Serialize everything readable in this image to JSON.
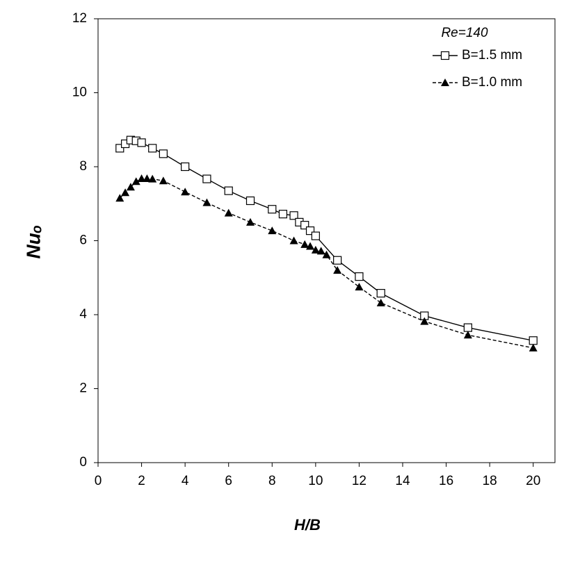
{
  "chart_data": {
    "type": "line",
    "x_label": "H/B",
    "y_label": "Nuₒ",
    "annotation": "Re=140",
    "xlim": [
      0,
      21
    ],
    "xticks": [
      0,
      2,
      4,
      6,
      8,
      10,
      12,
      14,
      16,
      18,
      20
    ],
    "ylim": [
      0,
      12
    ],
    "yticks": [
      0,
      2,
      4,
      6,
      8,
      10,
      12
    ],
    "legend": "top-right",
    "grid": false,
    "series": [
      {
        "name": "B=1.5 mm",
        "color": "#000000",
        "marker": "square-open",
        "dash": false,
        "x": [
          1,
          1.25,
          1.5,
          1.75,
          2,
          2.5,
          3,
          4,
          5,
          6,
          7,
          8,
          8.5,
          9,
          9.25,
          9.5,
          9.75,
          10,
          11,
          12,
          13,
          15,
          17,
          20
        ],
        "values": [
          8.5,
          8.62,
          8.72,
          8.7,
          8.65,
          8.5,
          8.35,
          8.0,
          7.67,
          7.35,
          7.08,
          6.85,
          6.72,
          6.68,
          6.5,
          6.42,
          6.27,
          6.13,
          5.47,
          5.03,
          4.58,
          3.97,
          3.65,
          3.3
        ]
      },
      {
        "name": "B=1.0 mm",
        "color": "#000000",
        "marker": "triangle-filled",
        "dash": true,
        "x": [
          1,
          1.25,
          1.5,
          1.75,
          2,
          2.25,
          2.5,
          3,
          4,
          5,
          6,
          7,
          8,
          9,
          9.5,
          9.75,
          10,
          10.25,
          10.5,
          11,
          12,
          13,
          15,
          17,
          20
        ],
        "values": [
          7.15,
          7.3,
          7.45,
          7.6,
          7.68,
          7.68,
          7.67,
          7.62,
          7.32,
          7.03,
          6.75,
          6.5,
          6.27,
          6.0,
          5.9,
          5.85,
          5.75,
          5.72,
          5.62,
          5.2,
          4.75,
          4.32,
          3.82,
          3.45,
          3.1
        ]
      }
    ]
  }
}
